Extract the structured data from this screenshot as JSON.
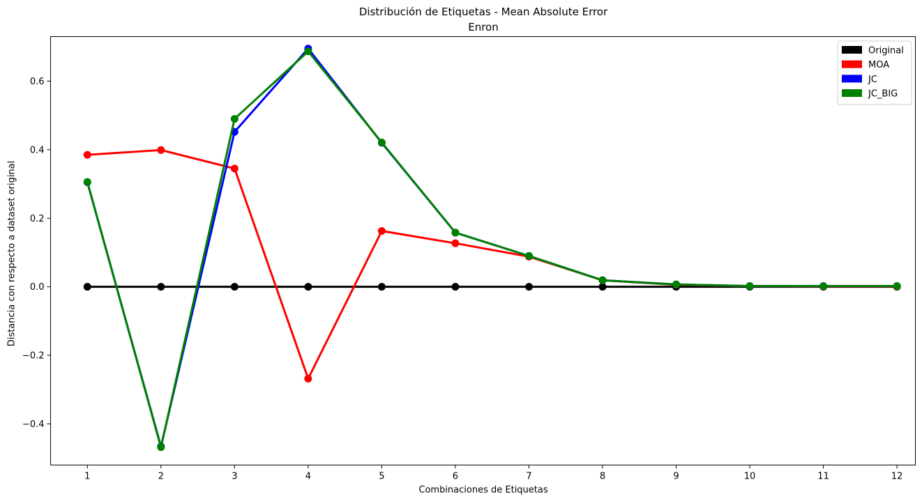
{
  "chart_data": {
    "type": "line",
    "title": "Distribución de Etiquetas - Mean Absolute Error",
    "subtitle": "Enron",
    "xlabel": "Combinaciones de Etiquetas",
    "ylabel": "Distancia con respecto a dataset original",
    "x": [
      1,
      2,
      3,
      4,
      5,
      6,
      7,
      8,
      9,
      10,
      11,
      12
    ],
    "xlim": [
      0.5,
      12.25
    ],
    "ylim": [
      -0.52,
      0.73
    ],
    "yticks": [
      -0.4,
      -0.2,
      0.0,
      0.2,
      0.4,
      0.6
    ],
    "ytick_labels": [
      "−0.4",
      "−0.2",
      "0.0",
      "0.2",
      "0.4",
      "0.6"
    ],
    "xtick_labels": [
      "1",
      "2",
      "3",
      "4",
      "5",
      "6",
      "7",
      "8",
      "9",
      "10",
      "11",
      "12"
    ],
    "grid": false,
    "legend_position": "top-right",
    "series": [
      {
        "name": "Original",
        "color": "#000000",
        "values": [
          0,
          0,
          0,
          0,
          0,
          0,
          0,
          0,
          0,
          0,
          0,
          0
        ]
      },
      {
        "name": "MOA",
        "color": "#ff0000",
        "values": [
          0.385,
          0.399,
          0.345,
          -0.268,
          0.163,
          0.127,
          0.088,
          0.019,
          0.006,
          0.002,
          0.001,
          0.001
        ]
      },
      {
        "name": "JC",
        "color": "#0000ff",
        "values": [
          0.305,
          -0.466,
          0.452,
          0.695,
          0.42,
          0.158,
          0.09,
          0.019,
          0.007,
          0.002,
          0.002,
          0.002
        ]
      },
      {
        "name": "JC_BIG",
        "color": "#008000",
        "values": [
          0.306,
          -0.468,
          0.49,
          0.687,
          0.421,
          0.158,
          0.09,
          0.019,
          0.007,
          0.002,
          0.002,
          0.002
        ]
      }
    ]
  }
}
